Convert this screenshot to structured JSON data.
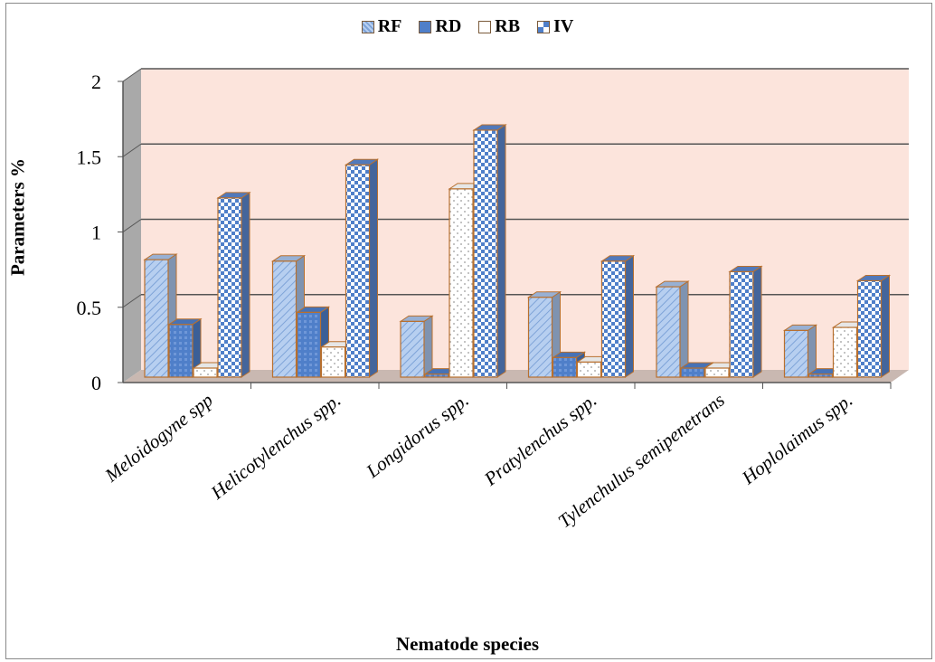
{
  "chart_data": {
    "type": "bar",
    "title": "",
    "xlabel": "Nematode species",
    "ylabel": "Parameters %",
    "ylim": [
      0,
      2
    ],
    "yticks": [
      "0",
      "0.5",
      "1",
      "1.5",
      "2"
    ],
    "grid": true,
    "legend_position": "top",
    "categories": [
      "Meloidogyne spp",
      "Helicotylenchus spp.",
      "Longidorus spp.",
      "Pratylenchus spp.",
      "Tylenchulus semipenetrans",
      "Hoplolaimus spp."
    ],
    "series": [
      {
        "name": "RF",
        "values": [
          0.78,
          0.77,
          0.37,
          0.53,
          0.6,
          0.31
        ],
        "color": "#a9c4ea"
      },
      {
        "name": "RD",
        "values": [
          0.35,
          0.43,
          0.02,
          0.13,
          0.06,
          0.02
        ],
        "color": "#4f7fc9"
      },
      {
        "name": "RB",
        "values": [
          0.06,
          0.2,
          1.25,
          0.1,
          0.06,
          0.33
        ],
        "color": "#ffffff"
      },
      {
        "name": "IV",
        "values": [
          1.19,
          1.41,
          1.64,
          0.77,
          0.7,
          0.64
        ],
        "color": "#5b86cf"
      }
    ]
  },
  "colors": {
    "plot_background": "#fce4dc",
    "side_wall": "#a9a9a9",
    "floor": "#c9b8b1",
    "bar_border": "#b8702f",
    "gridline": "#555555"
  }
}
